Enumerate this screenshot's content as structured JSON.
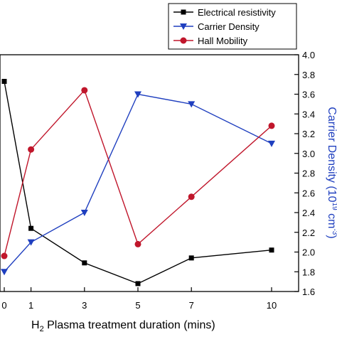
{
  "chart_data": {
    "type": "line",
    "x": [
      0,
      1,
      3,
      5,
      7,
      10
    ],
    "x_tick_labels": [
      "0",
      "1",
      "3",
      "5",
      "7",
      "10"
    ],
    "xlabel_main": "H",
    "xlabel_sub": "2",
    "xlabel_rest": " Plasma treatment duration (mins)",
    "right_ylabel": "Carrier Density (10",
    "right_ylabel_sup": "19",
    "right_ylabel_rest": " cm",
    "right_ylabel_sup2": "-3",
    "right_ylabel_end": ")",
    "right_ylim": [
      1.6,
      4.0
    ],
    "right_yticks": [
      "1.6",
      "1.8",
      "2.0",
      "2.2",
      "2.4",
      "2.6",
      "2.8",
      "3.0",
      "3.2",
      "3.4",
      "3.6",
      "3.8",
      "4.0"
    ],
    "legend_position": "top-center",
    "grid": false,
    "series": [
      {
        "name": "Electrical resistivity",
        "marker": "square",
        "color": "#000000",
        "values": [
          3.73,
          2.24,
          1.89,
          1.68,
          1.94,
          2.02
        ]
      },
      {
        "name": "Carrier Density",
        "marker": "triangle-down",
        "color": "#1f3fbf",
        "values": [
          1.8,
          2.1,
          2.4,
          3.6,
          3.5,
          3.1
        ]
      },
      {
        "name": "Hall Mobility",
        "marker": "circle",
        "color": "#c0162b",
        "values": [
          1.96,
          3.04,
          3.64,
          2.08,
          2.56,
          3.28
        ]
      }
    ]
  }
}
